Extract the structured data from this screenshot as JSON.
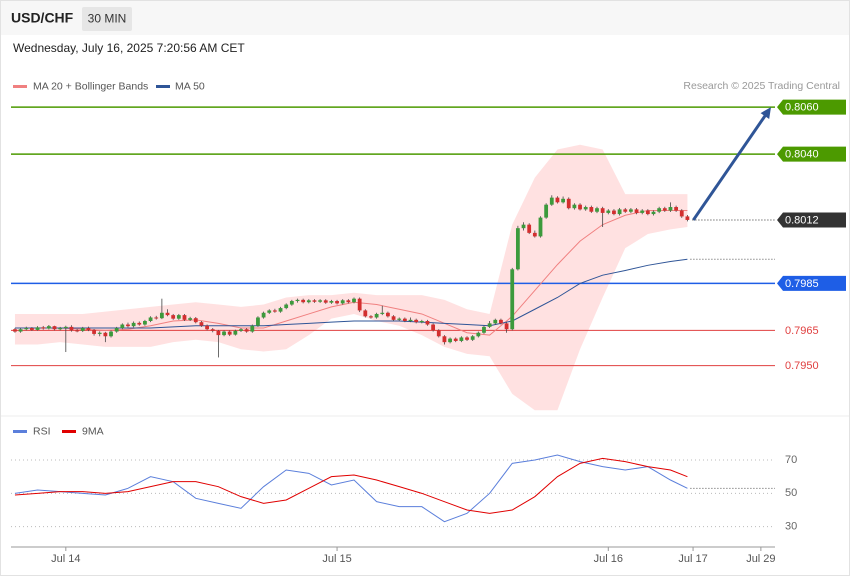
{
  "header": {
    "symbol": "USD/CHF",
    "timeframe": "30 MIN",
    "timestamp": "Wednesday, July 16, 2025 7:20:56 AM CET",
    "credit": "Research © 2025 Trading Central"
  },
  "chart_data": {
    "type": "candlestick",
    "xlim": [
      -0.7,
      134.5
    ],
    "xticks": [
      {
        "value": 9,
        "label": "Jul 14"
      },
      {
        "value": 57,
        "label": "Jul 15"
      },
      {
        "value": 105,
        "label": "Jul 16"
      },
      {
        "value": 120,
        "label": "Jul 17"
      },
      {
        "value": 132,
        "label": "Jul 29"
      }
    ],
    "ylim": [
      0.7929,
      0.8089
    ],
    "up_color": "#3c9a3c",
    "down_color": "#d32f2f",
    "open": [
      0.79655,
      0.79645,
      0.79655,
      0.7966,
      0.79652,
      0.79663,
      0.79658,
      0.79668,
      0.79655,
      0.7966,
      0.79665,
      0.7965,
      0.79648,
      0.7966,
      0.79652,
      0.79635,
      0.7964,
      0.79625,
      0.79645,
      0.7966,
      0.79675,
      0.79668,
      0.79682,
      0.79675,
      0.7969,
      0.79705,
      0.79702,
      0.79725,
      0.79715,
      0.797,
      0.79715,
      0.79695,
      0.79702,
      0.79685,
      0.7967,
      0.79655,
      0.79648,
      0.7963,
      0.79645,
      0.79632,
      0.79648,
      0.79655,
      0.79645,
      0.7967,
      0.79705,
      0.79725,
      0.79735,
      0.7973,
      0.79745,
      0.7976,
      0.79775,
      0.7978,
      0.7977,
      0.79778,
      0.79772,
      0.79778,
      0.79768,
      0.79775,
      0.79765,
      0.79778,
      0.7977,
      0.79785,
      0.79735,
      0.7971,
      0.79705,
      0.7972,
      0.79725,
      0.7971,
      0.79695,
      0.797,
      0.7969,
      0.79695,
      0.79685,
      0.7969,
      0.79675,
      0.7965,
      0.79625,
      0.796,
      0.79615,
      0.79605,
      0.7962,
      0.7961,
      0.79625,
      0.7964,
      0.79665,
      0.7968,
      0.79695,
      0.7968,
      0.79655,
      0.7991,
      0.80085,
      0.801,
      0.80065,
      0.8005,
      0.8013,
      0.80185,
      0.80215,
      0.80195,
      0.8021,
      0.8017,
      0.80185,
      0.80165,
      0.80175,
      0.80155,
      0.8017,
      0.8015,
      0.8016,
      0.80145,
      0.80165,
      0.80155,
      0.80165,
      0.8015,
      0.8016,
      0.80145,
      0.80155,
      0.8017,
      0.8016,
      0.80175,
      0.8016,
      0.80135
    ],
    "high": [
      0.7966,
      0.7966,
      0.79666,
      0.79664,
      0.79668,
      0.79669,
      0.79673,
      0.7967,
      0.79665,
      0.7967,
      0.79672,
      0.79656,
      0.79665,
      0.79666,
      0.79656,
      0.79646,
      0.79644,
      0.7965,
      0.79665,
      0.7968,
      0.79683,
      0.79688,
      0.79688,
      0.79695,
      0.7971,
      0.79712,
      0.79785,
      0.7974,
      0.7972,
      0.7972,
      0.7972,
      0.79708,
      0.79707,
      0.7969,
      0.79675,
      0.7966,
      0.79652,
      0.7965,
      0.7965,
      0.79653,
      0.7966,
      0.7966,
      0.79675,
      0.7971,
      0.7973,
      0.7974,
      0.79742,
      0.7975,
      0.79765,
      0.7978,
      0.79785,
      0.79785,
      0.79783,
      0.79783,
      0.79783,
      0.79783,
      0.7978,
      0.7978,
      0.79783,
      0.79783,
      0.7979,
      0.7979,
      0.7974,
      0.79715,
      0.79725,
      0.79755,
      0.7973,
      0.79715,
      0.79705,
      0.79705,
      0.79705,
      0.797,
      0.79695,
      0.79695,
      0.7968,
      0.79655,
      0.7963,
      0.7962,
      0.7962,
      0.79625,
      0.79625,
      0.7963,
      0.79645,
      0.7967,
      0.7969,
      0.797,
      0.797,
      0.79685,
      0.79916,
      0.80095,
      0.8011,
      0.80106,
      0.80075,
      0.80136,
      0.80191,
      0.80225,
      0.80221,
      0.8022,
      0.80216,
      0.80191,
      0.80191,
      0.80181,
      0.80181,
      0.80176,
      0.80176,
      0.80166,
      0.80166,
      0.80171,
      0.80171,
      0.80171,
      0.80171,
      0.80166,
      0.80166,
      0.80161,
      0.80176,
      0.80176,
      0.80195,
      0.80181,
      0.80166,
      0.80141
    ],
    "low": [
      0.7964,
      0.7964,
      0.7965,
      0.79648,
      0.79649,
      0.79653,
      0.79654,
      0.7965,
      0.7965,
      0.79558,
      0.79645,
      0.79642,
      0.79643,
      0.79647,
      0.79628,
      0.79625,
      0.796,
      0.7962,
      0.7964,
      0.79655,
      0.79663,
      0.79663,
      0.7967,
      0.7967,
      0.79685,
      0.79696,
      0.79698,
      0.7971,
      0.79695,
      0.79695,
      0.7969,
      0.7969,
      0.7968,
      0.79665,
      0.7965,
      0.79642,
      0.79535,
      0.79625,
      0.79626,
      0.79628,
      0.79643,
      0.7964,
      0.7964,
      0.79665,
      0.797,
      0.7972,
      0.79725,
      0.79725,
      0.7974,
      0.79755,
      0.79768,
      0.79765,
      0.79765,
      0.79767,
      0.79767,
      0.79763,
      0.79763,
      0.7976,
      0.7976,
      0.79765,
      0.79765,
      0.79728,
      0.79705,
      0.797,
      0.797,
      0.79715,
      0.79705,
      0.7969,
      0.7969,
      0.79685,
      0.79685,
      0.7968,
      0.7968,
      0.7967,
      0.79645,
      0.7962,
      0.7959,
      0.79595,
      0.796,
      0.796,
      0.79605,
      0.79605,
      0.7962,
      0.79635,
      0.7966,
      0.79675,
      0.79675,
      0.7964,
      0.7965,
      0.79905,
      0.80075,
      0.8006,
      0.80045,
      0.80045,
      0.80125,
      0.8018,
      0.8019,
      0.8019,
      0.80165,
      0.80164,
      0.8016,
      0.80159,
      0.8015,
      0.80149,
      0.8009,
      0.80144,
      0.8014,
      0.80139,
      0.8015,
      0.80149,
      0.80144,
      0.80144,
      0.8014,
      0.80139,
      0.80149,
      0.80154,
      0.80154,
      0.80154,
      0.80129,
      0.80114
    ],
    "close": [
      0.79645,
      0.79655,
      0.7966,
      0.79652,
      0.79663,
      0.79658,
      0.79668,
      0.79655,
      0.7966,
      0.79665,
      0.7965,
      0.79648,
      0.7966,
      0.79652,
      0.79635,
      0.7964,
      0.79625,
      0.79645,
      0.7966,
      0.79675,
      0.79668,
      0.79682,
      0.79675,
      0.7969,
      0.79705,
      0.79702,
      0.79725,
      0.79715,
      0.797,
      0.79715,
      0.79695,
      0.79702,
      0.79685,
      0.7967,
      0.79655,
      0.79648,
      0.7963,
      0.79645,
      0.79632,
      0.79648,
      0.79655,
      0.79645,
      0.7967,
      0.79705,
      0.79725,
      0.79735,
      0.7973,
      0.79745,
      0.7976,
      0.79775,
      0.7978,
      0.7977,
      0.79778,
      0.79772,
      0.79778,
      0.79768,
      0.79775,
      0.79765,
      0.79778,
      0.7977,
      0.79785,
      0.79735,
      0.7971,
      0.79705,
      0.7972,
      0.79725,
      0.7971,
      0.79695,
      0.797,
      0.7969,
      0.79695,
      0.79685,
      0.7969,
      0.79675,
      0.7965,
      0.79625,
      0.796,
      0.79615,
      0.79605,
      0.7962,
      0.7961,
      0.79625,
      0.7964,
      0.79665,
      0.7968,
      0.79695,
      0.7968,
      0.79655,
      0.7991,
      0.80085,
      0.801,
      0.80065,
      0.8005,
      0.8013,
      0.80185,
      0.80215,
      0.80195,
      0.8021,
      0.8017,
      0.80185,
      0.80165,
      0.80175,
      0.80155,
      0.8017,
      0.8015,
      0.8016,
      0.80145,
      0.80165,
      0.80155,
      0.80165,
      0.8015,
      0.8016,
      0.80145,
      0.80155,
      0.8017,
      0.8016,
      0.80175,
      0.8016,
      0.80135,
      0.8012
    ],
    "overlay_x": [
      0,
      4,
      8,
      12,
      16,
      20,
      24,
      28,
      32,
      36,
      40,
      44,
      48,
      52,
      56,
      60,
      64,
      68,
      72,
      76,
      80,
      84,
      88,
      92,
      96,
      100,
      104,
      108,
      112,
      116,
      119
    ],
    "ma20": {
      "name": "MA 20 + Bollinger Bands",
      "color": "#f08080",
      "band_color": "#ffd9d9",
      "values": [
        0.7966,
        0.7966,
        0.7966,
        0.79655,
        0.7965,
        0.79655,
        0.7967,
        0.7969,
        0.79695,
        0.7968,
        0.7966,
        0.7966,
        0.7969,
        0.7972,
        0.7975,
        0.7977,
        0.7976,
        0.7974,
        0.7972,
        0.7968,
        0.7964,
        0.7963,
        0.7971,
        0.7982,
        0.7993,
        0.8003,
        0.801,
        0.8014,
        0.8016,
        0.8016,
        0.8016
      ],
      "upper": [
        0.7972,
        0.7972,
        0.7972,
        0.7972,
        0.7973,
        0.7974,
        0.7975,
        0.7976,
        0.7977,
        0.7976,
        0.7975,
        0.7976,
        0.7979,
        0.798,
        0.798,
        0.7981,
        0.798,
        0.798,
        0.798,
        0.7978,
        0.7974,
        0.7972,
        0.801,
        0.803,
        0.8042,
        0.8044,
        0.8042,
        0.8023,
        0.8023,
        0.8023,
        0.8023
      ],
      "lower": [
        0.7959,
        0.7959,
        0.796,
        0.7959,
        0.7958,
        0.7958,
        0.7958,
        0.796,
        0.7961,
        0.796,
        0.7957,
        0.7956,
        0.7957,
        0.7963,
        0.797,
        0.7972,
        0.7969,
        0.7967,
        0.7963,
        0.7958,
        0.7955,
        0.7954,
        0.7938,
        0.7931,
        0.7931,
        0.7957,
        0.7979,
        0.8,
        0.8006,
        0.8008,
        0.8009
      ]
    },
    "ma50": {
      "name": "MA 50",
      "color": "#2f5597",
      "values": [
        0.7966,
        0.7966,
        0.7966,
        0.7966,
        0.7966,
        0.7966,
        0.7966,
        0.79665,
        0.7967,
        0.7967,
        0.7967,
        0.7967,
        0.79675,
        0.7968,
        0.79685,
        0.7969,
        0.7969,
        0.7969,
        0.79685,
        0.7968,
        0.79675,
        0.7967,
        0.7969,
        0.7974,
        0.7979,
        0.7985,
        0.79885,
        0.79905,
        0.79927,
        0.79943,
        0.79953
      ]
    },
    "levels": [
      {
        "value": 0.806,
        "label": "0.8060",
        "color": "#4c9a00",
        "line": "solid",
        "boxed": true
      },
      {
        "value": 0.804,
        "label": "0.8040",
        "color": "#4c9a00",
        "line": "solid",
        "boxed": true
      },
      {
        "value": 0.8012,
        "label": "0.8012",
        "color": "#333333",
        "line": "dotted",
        "boxed": true
      },
      {
        "value": 0.7985,
        "label": "0.7985",
        "color": "#1e5ee6",
        "line": "solid",
        "boxed": true
      },
      {
        "value": 0.7965,
        "label": "0.7965",
        "color": "#e04040",
        "line": "solid",
        "boxed": false
      },
      {
        "value": 0.795,
        "label": "0.7950",
        "color": "#e04040",
        "line": "solid",
        "boxed": false
      }
    ],
    "rsi": {
      "ylim": [
        22,
        82
      ],
      "yticks": [
        30,
        50,
        70
      ],
      "series": [
        {
          "name": "RSI",
          "color": "#5b7fdb",
          "values": [
            50,
            52,
            51,
            50,
            49,
            53,
            60,
            57,
            47,
            44,
            41,
            54,
            64,
            62,
            55,
            58,
            45,
            42,
            42,
            33,
            38,
            50,
            68,
            70,
            73,
            69,
            66,
            64,
            66,
            58,
            53
          ]
        },
        {
          "name": "9MA",
          "color": "#e00000",
          "values": [
            49,
            50,
            51,
            51,
            50,
            51,
            54,
            57,
            57,
            54,
            48,
            44,
            46,
            53,
            60,
            61,
            58,
            54,
            50,
            45,
            40,
            38,
            40,
            48,
            60,
            68,
            71,
            69,
            66,
            64,
            60
          ]
        }
      ]
    }
  }
}
